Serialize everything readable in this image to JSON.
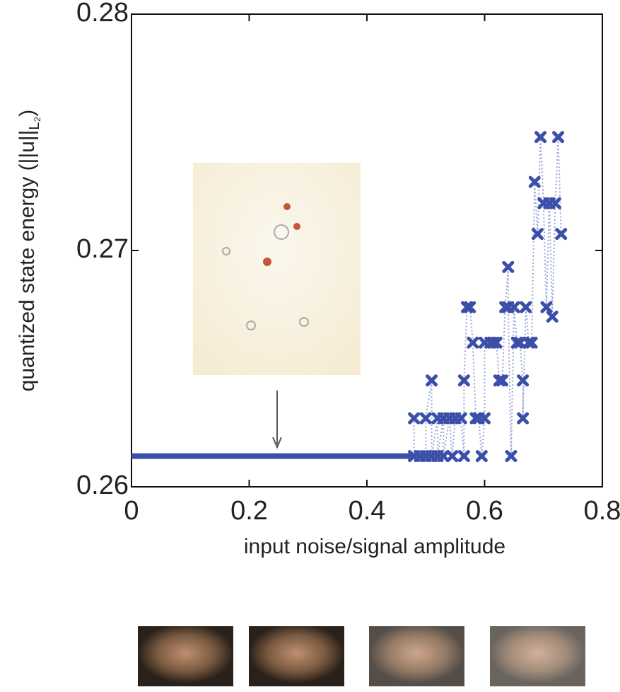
{
  "chart_data": {
    "type": "scatter",
    "xlabel": "input noise/signal amplitude",
    "ylabel": "quantized state energy (||u||",
    "ylabel_sub": "L₂",
    "ylabel_end": ")",
    "xlim": [
      0,
      0.8
    ],
    "ylim": [
      0.26,
      0.28
    ],
    "xticks": [
      0,
      0.2,
      0.4,
      0.6,
      0.8
    ],
    "yticks": [
      0.26,
      0.27,
      0.28
    ],
    "series": [
      {
        "style": "line",
        "color": "#3b4fa8",
        "x": [
          0,
          0.48
        ],
        "values": [
          0.2613,
          0.2613
        ]
      },
      {
        "style": "marker",
        "color": "#3b4fa8",
        "x": [
          0.48,
          0.48,
          0.49,
          0.5,
          0.5,
          0.51,
          0.51,
          0.52,
          0.52,
          0.53,
          0.53,
          0.54,
          0.545,
          0.55,
          0.56,
          0.565,
          0.565,
          0.57,
          0.575,
          0.58,
          0.585,
          0.59,
          0.595,
          0.6,
          0.6,
          0.61,
          0.615,
          0.62,
          0.625,
          0.63,
          0.635,
          0.64,
          0.64,
          0.645,
          0.65,
          0.655,
          0.66,
          0.665,
          0.665,
          0.67,
          0.675,
          0.68,
          0.685,
          0.69,
          0.695,
          0.7,
          0.705,
          0.71,
          0.715,
          0.72,
          0.725,
          0.73
        ],
        "values": [
          0.2629,
          0.2613,
          0.2613,
          0.2613,
          0.2629,
          0.2645,
          0.2613,
          0.2629,
          0.2613,
          0.2629,
          0.2613,
          0.2629,
          0.2613,
          0.2629,
          0.2629,
          0.2613,
          0.2645,
          0.2676,
          0.2676,
          0.2661,
          0.2629,
          0.2629,
          0.2613,
          0.2629,
          0.2661,
          0.2661,
          0.2661,
          0.2661,
          0.2645,
          0.2645,
          0.2676,
          0.2693,
          0.2676,
          0.2613,
          0.2676,
          0.2661,
          0.2661,
          0.2645,
          0.2629,
          0.2676,
          0.2661,
          0.2661,
          0.2729,
          0.2707,
          0.2748,
          0.272,
          0.2676,
          0.272,
          0.2672,
          0.272,
          0.2748,
          0.2707
        ]
      }
    ]
  }
}
